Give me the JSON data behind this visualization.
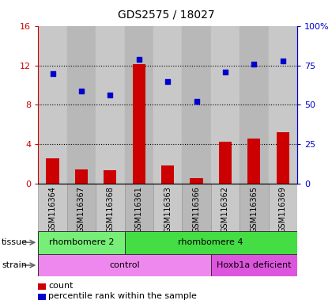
{
  "title": "GDS2575 / 18027",
  "samples": [
    "GSM116364",
    "GSM116367",
    "GSM116368",
    "GSM116361",
    "GSM116363",
    "GSM116366",
    "GSM116362",
    "GSM116365",
    "GSM116369"
  ],
  "counts": [
    2.6,
    1.5,
    1.4,
    12.1,
    1.9,
    0.6,
    4.3,
    4.6,
    5.2
  ],
  "percentiles": [
    70,
    59,
    56,
    79,
    65,
    52,
    71,
    76,
    78
  ],
  "count_color": "#cc0000",
  "percentile_color": "#0000cc",
  "ylim_left": [
    0,
    16
  ],
  "ylim_right": [
    0,
    100
  ],
  "yticks_left": [
    0,
    4,
    8,
    12,
    16
  ],
  "yticks_right": [
    0,
    25,
    50,
    75,
    100
  ],
  "ytick_labels_left": [
    "0",
    "4",
    "8",
    "12",
    "16"
  ],
  "ytick_labels_right": [
    "0",
    "25",
    "50",
    "75",
    "100%"
  ],
  "tissue_groups": [
    {
      "label": "rhombomere 2",
      "start": 0,
      "end": 3,
      "color": "#77ee77"
    },
    {
      "label": "rhombomere 4",
      "start": 3,
      "end": 9,
      "color": "#44dd44"
    }
  ],
  "strain_groups": [
    {
      "label": "control",
      "start": 0,
      "end": 6,
      "color": "#ee88ee"
    },
    {
      "label": "Hoxb1a deficient",
      "start": 6,
      "end": 9,
      "color": "#dd55dd"
    }
  ],
  "bar_width": 0.45,
  "col_colors": [
    "#c8c8c8",
    "#b8b8b8",
    "#c8c8c8",
    "#b8b8b8",
    "#c8c8c8",
    "#b8b8b8",
    "#c8c8c8",
    "#b8b8b8",
    "#c8c8c8"
  ],
  "plot_bg": "#ffffff",
  "grid_lines": [
    4,
    8,
    12
  ],
  "box_bg": "#e0e0e0"
}
